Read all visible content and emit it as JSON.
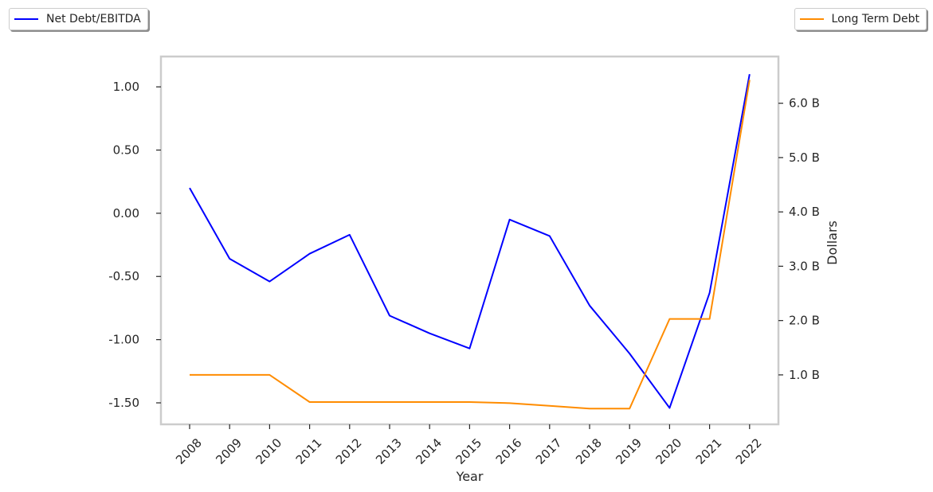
{
  "chart_data": {
    "type": "line",
    "xlabel": "Year",
    "ylabel_left": "",
    "ylabel_right": "Dollars",
    "categories": [
      "2008",
      "2009",
      "2010",
      "2011",
      "2012",
      "2013",
      "2014",
      "2015",
      "2016",
      "2017",
      "2018",
      "2019",
      "2020",
      "2021",
      "2022"
    ],
    "left_axis": {
      "ylim": [
        -1.67,
        1.24
      ],
      "ticks": [
        1.0,
        0.5,
        0.0,
        -0.5,
        -1.0,
        -1.5
      ],
      "tick_labels": [
        "1.00",
        "0.50",
        "0.00",
        "-0.50",
        "-1.00",
        "-1.50"
      ]
    },
    "right_axis": {
      "ylim": [
        0.09,
        6.86
      ],
      "ticks": [
        6.0,
        5.0,
        4.0,
        3.0,
        2.0,
        1.0
      ],
      "tick_labels": [
        "6.0 B",
        "5.0 B",
        "4.0 B",
        "3.0 B",
        "2.0 B",
        "1.0 B"
      ],
      "unit": "billions of dollars"
    },
    "series": [
      {
        "name": "Net Debt/EBITDA",
        "axis": "left",
        "color": "#0000ff",
        "values": [
          0.2,
          -0.36,
          -0.54,
          -0.32,
          -0.17,
          -0.81,
          -0.95,
          -1.07,
          -0.05,
          -0.18,
          -0.73,
          -1.11,
          -1.54,
          -0.63,
          1.1
        ]
      },
      {
        "name": "Long Term Debt",
        "axis": "right",
        "color": "#ff8c00",
        "values": [
          1.0,
          1.0,
          1.0,
          0.5,
          0.5,
          0.5,
          0.5,
          0.5,
          0.48,
          0.43,
          0.38,
          0.38,
          2.03,
          2.03,
          6.43
        ]
      }
    ],
    "grid": false,
    "legend_placement": [
      "top-left",
      "top-right"
    ]
  }
}
